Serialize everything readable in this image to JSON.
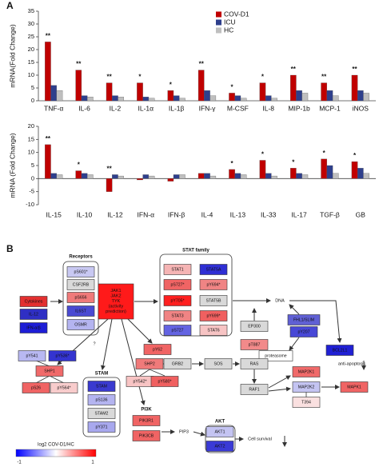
{
  "panel_labels": [
    "A",
    "B"
  ],
  "chart_data": [
    {
      "type": "bar",
      "ylabel": "mRNA(Fold Change)",
      "categories": [
        "TNF-α",
        "IL-6",
        "IL-2",
        "IL-1α",
        "IL-1β",
        "IFN-γ",
        "M-CSF",
        "IL-8",
        "MIP-1b",
        "MCP-1",
        "iNOS"
      ],
      "series": [
        {
          "name": "COV-D1",
          "color": "#c00000",
          "values": [
            23,
            12,
            7,
            7,
            4,
            12,
            3,
            7,
            10,
            7,
            10
          ]
        },
        {
          "name": "ICU",
          "color": "#2e3f8c",
          "values": [
            6,
            2,
            2,
            1.5,
            2,
            4,
            2,
            2,
            4,
            4,
            4
          ]
        },
        {
          "name": "HC",
          "color": "#bfbfbf",
          "values": [
            4,
            1.5,
            1.5,
            1,
            1,
            2,
            1,
            1,
            3,
            2,
            3
          ]
        }
      ],
      "annotations": [
        "**",
        "**",
        "**",
        "*",
        "*",
        "**",
        "*",
        "*",
        "**",
        "**",
        "**"
      ],
      "ylim": [
        0,
        35
      ],
      "yticks": [
        0,
        5,
        10,
        15,
        20,
        25,
        30,
        35
      ],
      "legend": "upper right"
    },
    {
      "type": "bar",
      "ylabel": "mRNA (Fold Change)",
      "categories": [
        "IL-15",
        "IL-10",
        "IL-12",
        "IFN-α",
        "IFN-β",
        "IL-4",
        "IL-13",
        "IL-33",
        "IL-17",
        "TGF-β",
        "GB"
      ],
      "series": [
        {
          "color": "#c00000",
          "values": [
            13,
            3,
            -5,
            -0.5,
            -1,
            2,
            3.5,
            7,
            4,
            7.5,
            6.5
          ]
        },
        {
          "color": "#2e3f8c",
          "values": [
            2,
            2,
            1.5,
            1.5,
            1.5,
            2,
            2,
            2,
            2,
            5,
            4
          ]
        },
        {
          "color": "#bfbfbf",
          "values": [
            1.5,
            1.5,
            1,
            1,
            1.5,
            1,
            1.5,
            1,
            1.5,
            2,
            2
          ]
        }
      ],
      "annotations": [
        "**",
        "*",
        "**",
        null,
        null,
        null,
        "*",
        "*",
        "*",
        "*",
        "*"
      ],
      "ylim": [
        -10,
        20
      ],
      "yticks": [
        -10,
        -5,
        0,
        5,
        10,
        15,
        20
      ]
    }
  ],
  "diagram": {
    "groups": [
      "Receptors",
      "STAT family",
      "STAM",
      "PI3K",
      "AKT"
    ],
    "nodes": [
      {
        "label": "pS601*",
        "color": "#c8c8f2"
      },
      {
        "label": "CSF2RB",
        "color": "#d9d9d9"
      },
      {
        "label": "pS656",
        "color": "#f07a7a"
      },
      {
        "label": "IL6ST",
        "color": "#4a4ad2"
      },
      {
        "label": "OSMR",
        "color": "#b4b4f0"
      },
      {
        "label": "Cytokines",
        "color": "#e33030"
      },
      {
        "label": "IL-12",
        "color": "#2f2fc4"
      },
      {
        "label": "IFN-α/β",
        "color": "#1e1ed6"
      },
      {
        "label": "JAK1\nJAK2\nTYK\n(activity\nprediction)",
        "color": "#ff1a1a"
      },
      {
        "label": "STAT1",
        "color": "#f5b4b4"
      },
      {
        "label": "STAT5A",
        "color": "#2f2fd4"
      },
      {
        "label": "pS727*",
        "color": "#f06464"
      },
      {
        "label": "pY694*",
        "color": "#f08484"
      },
      {
        "label": "pY705*",
        "color": "#ff2020"
      },
      {
        "label": "STAT5B",
        "color": "#d9d9d9"
      },
      {
        "label": "STAT3",
        "color": "#f08484"
      },
      {
        "label": "pY699*",
        "color": "#f06060"
      },
      {
        "label": "pS727",
        "color": "#6464e2"
      },
      {
        "label": "STAT6",
        "color": "#f7c4c4"
      },
      {
        "label": "EP300",
        "color": "#d9d9d9"
      },
      {
        "label": "pT887",
        "color": "#f28a8a"
      },
      {
        "label": "FHL1/SLIM",
        "color": "#6060d4"
      },
      {
        "label": "pY207",
        "color": "#4848d6"
      },
      {
        "label": "proteasome",
        "color": "#ffffff"
      },
      {
        "label": "BCL2L1",
        "color": "#2020d4"
      },
      {
        "label": "pY541",
        "color": "#b8b8f2"
      },
      {
        "label": "pY536*",
        "color": "#3434d0"
      },
      {
        "label": "SHP1",
        "color": "#f06a6a"
      },
      {
        "label": "pS26",
        "color": "#f06464"
      },
      {
        "label": "pY564*",
        "color": "#f8cccc"
      },
      {
        "label": "STAM",
        "color": "#3a3ad0"
      },
      {
        "label": "pS136",
        "color": "#b4b4f0"
      },
      {
        "label": "STAM2",
        "color": "#d9d9d9"
      },
      {
        "label": "pY371",
        "color": "#a8a8ee"
      },
      {
        "label": "pY62",
        "color": "#f06464"
      },
      {
        "label": "SHP2",
        "color": "#f07a7a"
      },
      {
        "label": "GRB2",
        "color": "#d9d9d9"
      },
      {
        "label": "pY542*",
        "color": "#f8c4c4"
      },
      {
        "label": "pY580*",
        "color": "#f06060"
      },
      {
        "label": "SOS",
        "color": "#d9d9d9"
      },
      {
        "label": "RAS",
        "color": "#d9d9d9"
      },
      {
        "label": "RAF1",
        "color": "#d9d9d9"
      },
      {
        "label": "MAP2K1",
        "color": "#f06a6a"
      },
      {
        "label": "MAP2K2",
        "color": "#c4c4f2"
      },
      {
        "label": "T394",
        "color": "#fae0e0"
      },
      {
        "label": "MAPK1",
        "color": "#f06464"
      },
      {
        "label": "PIK3R1",
        "color": "#f06464"
      },
      {
        "label": "PIK3CB",
        "color": "#f06464"
      },
      {
        "label": "AKT1",
        "color": "#c4c4f2"
      },
      {
        "label": "AKT2",
        "color": "#3a3ad6"
      }
    ],
    "texts": [
      "DNA",
      "anti-apoptosis",
      "PIP3",
      "Cell survival",
      "?"
    ],
    "colorbar": {
      "title": "log2 COV-D1/HC",
      "ticks": [
        -1,
        1
      ],
      "colors": [
        "#0000ff",
        "#ffffff",
        "#ff0000"
      ]
    }
  }
}
